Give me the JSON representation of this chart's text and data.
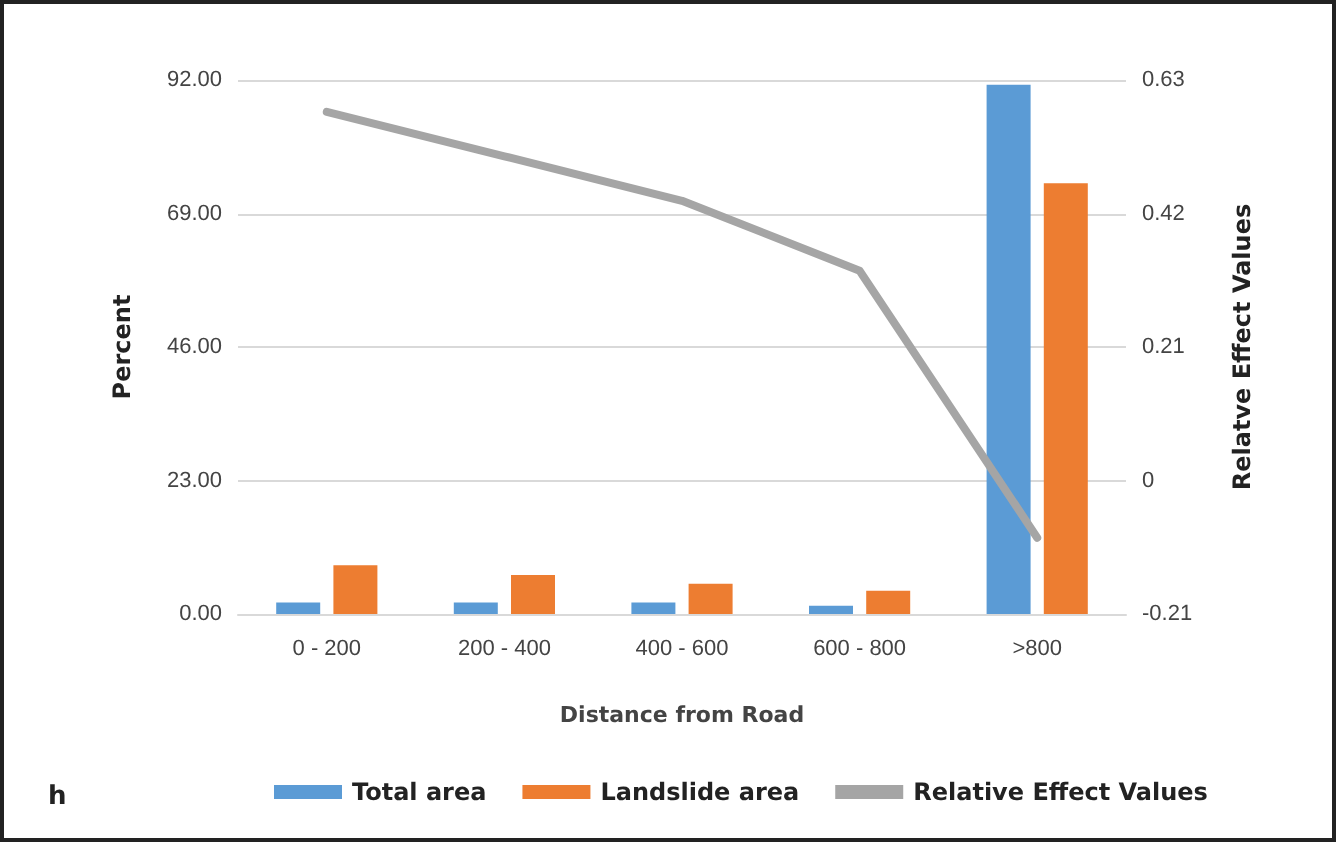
{
  "chart_data": {
    "type": "bar",
    "categories": [
      "0 - 200",
      "200 - 400",
      "400 - 600",
      "600 - 800",
      ">800"
    ],
    "series": [
      {
        "name": "Total area",
        "color": "#5b9bd5",
        "values": [
          2.0,
          2.0,
          2.0,
          1.4,
          91.2
        ]
      },
      {
        "name": "Landslide area",
        "color": "#ed7d31",
        "values": [
          8.4,
          6.7,
          5.2,
          4.0,
          74.2
        ]
      },
      {
        "name": "Relative Effect Values",
        "type": "line",
        "axis": "y2",
        "color": "#a5a5a5",
        "values": [
          0.58,
          0.51,
          0.44,
          0.33,
          -0.09
        ]
      }
    ],
    "xlabel": "Distance from Road",
    "ylabel": "Percent",
    "y2label": "Relatve Effect Values",
    "ylim": [
      0,
      92
    ],
    "yticks": [
      {
        "value": 0,
        "label": "0.00"
      },
      {
        "value": 23,
        "label": "23.00"
      },
      {
        "value": 46,
        "label": "46.00"
      },
      {
        "value": 69,
        "label": "69.00"
      },
      {
        "value": 92,
        "label": "92.00"
      }
    ],
    "y2lim": [
      -0.21,
      0.63
    ],
    "y2ticks": [
      -0.21,
      0,
      0.21,
      0.42,
      0.63
    ],
    "annotations": [
      "h"
    ],
    "grid": "y",
    "legend": "bottom",
    "marker": "none",
    "line_style": "solid"
  }
}
